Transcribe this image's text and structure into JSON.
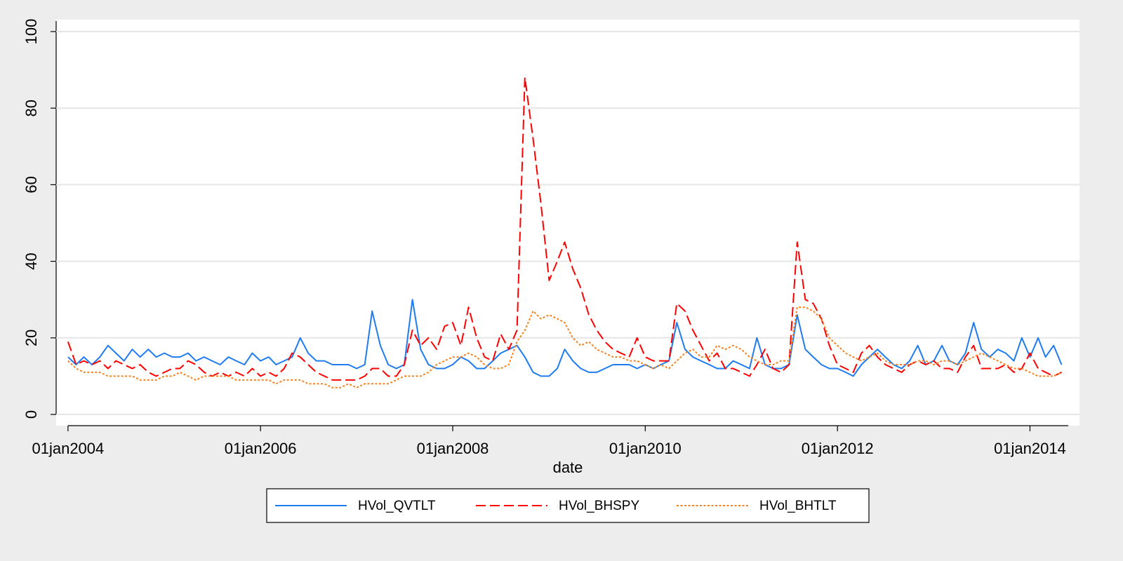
{
  "chart_data": {
    "type": "line",
    "x_label": "date",
    "x": [
      "2004-01-01",
      "2004-02-01",
      "2004-03-01",
      "2004-04-01",
      "2004-05-01",
      "2004-06-01",
      "2004-07-01",
      "2004-08-01",
      "2004-09-01",
      "2004-10-01",
      "2004-11-01",
      "2004-12-01",
      "2005-01-01",
      "2005-02-01",
      "2005-03-01",
      "2005-04-01",
      "2005-05-01",
      "2005-06-01",
      "2005-07-01",
      "2005-08-01",
      "2005-09-01",
      "2005-10-01",
      "2005-11-01",
      "2005-12-01",
      "2006-01-01",
      "2006-02-01",
      "2006-03-01",
      "2006-04-01",
      "2006-05-01",
      "2006-06-01",
      "2006-07-01",
      "2006-08-01",
      "2006-09-01",
      "2006-10-01",
      "2006-11-01",
      "2006-12-01",
      "2007-01-01",
      "2007-02-01",
      "2007-03-01",
      "2007-04-01",
      "2007-05-01",
      "2007-06-01",
      "2007-07-01",
      "2007-08-01",
      "2007-09-01",
      "2007-10-01",
      "2007-11-01",
      "2007-12-01",
      "2008-01-01",
      "2008-02-01",
      "2008-03-01",
      "2008-04-01",
      "2008-05-01",
      "2008-06-01",
      "2008-07-01",
      "2008-08-01",
      "2008-09-01",
      "2008-10-01",
      "2008-11-01",
      "2008-12-01",
      "2009-01-01",
      "2009-02-01",
      "2009-03-01",
      "2009-04-01",
      "2009-05-01",
      "2009-06-01",
      "2009-07-01",
      "2009-08-01",
      "2009-09-01",
      "2009-10-01",
      "2009-11-01",
      "2009-12-01",
      "2010-01-01",
      "2010-02-01",
      "2010-03-01",
      "2010-04-01",
      "2010-05-01",
      "2010-06-01",
      "2010-07-01",
      "2010-08-01",
      "2010-09-01",
      "2010-10-01",
      "2010-11-01",
      "2010-12-01",
      "2011-01-01",
      "2011-02-01",
      "2011-03-01",
      "2011-04-01",
      "2011-05-01",
      "2011-06-01",
      "2011-07-01",
      "2011-08-01",
      "2011-09-01",
      "2011-10-01",
      "2011-11-01",
      "2011-12-01",
      "2012-01-01",
      "2012-02-01",
      "2012-03-01",
      "2012-04-01",
      "2012-05-01",
      "2012-06-01",
      "2012-07-01",
      "2012-08-01",
      "2012-09-01",
      "2012-10-01",
      "2012-11-01",
      "2012-12-01",
      "2013-01-01",
      "2013-02-01",
      "2013-03-01",
      "2013-04-01",
      "2013-05-01",
      "2013-06-01",
      "2013-07-01",
      "2013-08-01",
      "2013-09-01",
      "2013-10-01",
      "2013-11-01",
      "2013-12-01",
      "2014-01-01",
      "2014-02-01",
      "2014-03-01",
      "2014-04-01",
      "2014-05-01"
    ],
    "series": [
      {
        "name": "HVol_QVTLT",
        "color": "#1e7bf0",
        "dash": "solid",
        "values": [
          15,
          13,
          15,
          13,
          15,
          18,
          16,
          14,
          17,
          15,
          17,
          15,
          16,
          15,
          15,
          16,
          14,
          15,
          14,
          13,
          15,
          14,
          13,
          16,
          14,
          15,
          13,
          14,
          15,
          20,
          16,
          14,
          14,
          13,
          13,
          13,
          12,
          13,
          27,
          18,
          13,
          12,
          13,
          30,
          17,
          13,
          12,
          12,
          13,
          15,
          14,
          12,
          12,
          14,
          16,
          17,
          18,
          15,
          11,
          10,
          10,
          12,
          17,
          14,
          12,
          11,
          11,
          12,
          13,
          13,
          13,
          12,
          13,
          12,
          13,
          14,
          24,
          17,
          15,
          14,
          13,
          12,
          12,
          14,
          13,
          12,
          20,
          13,
          12,
          12,
          13,
          26,
          17,
          15,
          13,
          12,
          12,
          11,
          10,
          13,
          15,
          17,
          15,
          13,
          12,
          14,
          18,
          13,
          14,
          18,
          14,
          13,
          16,
          24,
          17,
          15,
          17,
          16,
          14,
          20,
          15,
          20,
          15,
          18,
          13
        ]
      },
      {
        "name": "HVol_BHSPY",
        "color": "#ff0000",
        "dash": "long-dash",
        "values": [
          19,
          13,
          14,
          13,
          14,
          12,
          14,
          13,
          12,
          13,
          11,
          10,
          11,
          12,
          12,
          14,
          13,
          11,
          10,
          11,
          10,
          11,
          10,
          12,
          10,
          11,
          10,
          12,
          16,
          15,
          13,
          11,
          10,
          9,
          9,
          9,
          9,
          10,
          12,
          12,
          10,
          10,
          13,
          22,
          18,
          20,
          17,
          23,
          24,
          18,
          28,
          20,
          15,
          14,
          21,
          17,
          22,
          88,
          72,
          55,
          35,
          40,
          45,
          38,
          33,
          26,
          22,
          19,
          17,
          16,
          15,
          20,
          15,
          14,
          14,
          14,
          29,
          27,
          22,
          18,
          14,
          16,
          12,
          12,
          11,
          10,
          13,
          17,
          12,
          11,
          13,
          45,
          30,
          29,
          25,
          18,
          13,
          12,
          11,
          16,
          18,
          15,
          13,
          12,
          11,
          13,
          14,
          13,
          14,
          12,
          12,
          11,
          15,
          18,
          12,
          12,
          12,
          13,
          11,
          12,
          16,
          12,
          11,
          10,
          11
        ]
      },
      {
        "name": "HVol_BHTLT",
        "color": "#f58220",
        "dash": "short-dash",
        "values": [
          14,
          12,
          11,
          11,
          11,
          10,
          10,
          10,
          10,
          9,
          9,
          9,
          10,
          10,
          11,
          10,
          9,
          10,
          10,
          10,
          10,
          9,
          9,
          9,
          9,
          9,
          8,
          9,
          9,
          9,
          8,
          8,
          8,
          7,
          7,
          8,
          7,
          8,
          8,
          8,
          8,
          9,
          10,
          10,
          10,
          11,
          13,
          14,
          15,
          15,
          16,
          15,
          13,
          12,
          12,
          13,
          19,
          22,
          27,
          25,
          26,
          25,
          24,
          20,
          18,
          19,
          17,
          16,
          15,
          15,
          14,
          14,
          13,
          12,
          13,
          12,
          14,
          16,
          17,
          15,
          15,
          18,
          17,
          18,
          17,
          15,
          14,
          13,
          13,
          14,
          14,
          28,
          28,
          27,
          25,
          20,
          18,
          16,
          15,
          14,
          15,
          16,
          14,
          13,
          13,
          13,
          14,
          14,
          13,
          14,
          14,
          13,
          14,
          15,
          16,
          15,
          14,
          13,
          12,
          12,
          11,
          10,
          10,
          10,
          11
        ]
      }
    ],
    "xlim": [
      "2003-11-17",
      "2014-07-08"
    ],
    "xticks": [
      {
        "value": "2004-01-01",
        "label": "01jan2004"
      },
      {
        "value": "2006-01-01",
        "label": "01jan2006"
      },
      {
        "value": "2008-01-01",
        "label": "01jan2008"
      },
      {
        "value": "2010-01-01",
        "label": "01jan2010"
      },
      {
        "value": "2012-01-01",
        "label": "01jan2012"
      },
      {
        "value": "2014-01-01",
        "label": "01jan2014"
      }
    ],
    "ylim": [
      0,
      100
    ],
    "yticks": [
      0,
      20,
      40,
      60,
      80,
      100
    ],
    "grid": true,
    "legend": "bottom"
  }
}
